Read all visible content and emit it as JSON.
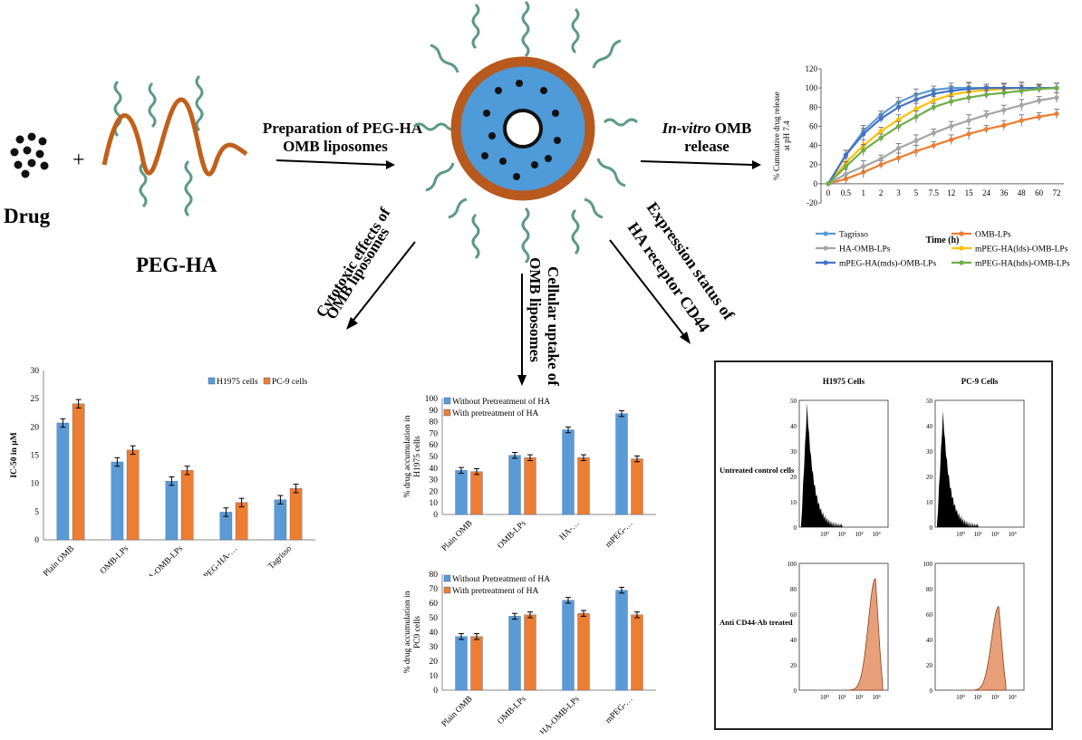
{
  "labels": {
    "drug": "Drug",
    "plus": "+",
    "peg_ha": "PEG-HA",
    "prep_line1": "Preparation of PEG-HA",
    "prep_line2": "OMB liposomes",
    "invitro_italic": "In-vitro",
    "invitro_rest": " OMB",
    "invitro_line2": "release",
    "cyto_line1": "Cytotoxic effects of",
    "cyto_line2": "OMB liposomes",
    "uptake_line1": "Cellular uptake of",
    "uptake_line2": "OMB liposomes",
    "expr_line1": "Expression status of",
    "expr_line2": "HA receptor CD44"
  },
  "colors": {
    "blue": "#5b9bd5",
    "orange": "#ed7d31",
    "gray": "#a5a5a5",
    "yellow": "#ffc000",
    "darkblue": "#4472c4",
    "green": "#70ad47",
    "liposome_core": "#4f9ad8",
    "liposome_shell": "#b8591e",
    "peg_green": "#5d9a86",
    "ha_brown": "#c0601a",
    "flow_fill": "#e8a07a"
  },
  "chart_data": [
    {
      "id": "release",
      "type": "line",
      "ylabel_line1": "% Cumulative drug release",
      "ylabel_line2": "at pH 7.4",
      "xlabel": "Time (h)",
      "categories": [
        "0",
        "0.5",
        "1",
        "2",
        "3",
        "5",
        "7.5",
        "12",
        "15",
        "24",
        "36",
        "48",
        "60",
        "72"
      ],
      "ylim": [
        -20,
        120
      ],
      "yticks": [
        -20,
        0,
        20,
        40,
        60,
        80,
        100,
        120
      ],
      "series": [
        {
          "name": "Tagrisso",
          "color": "#5b9bd5",
          "values": [
            0,
            30,
            55,
            72,
            85,
            93,
            98,
            100,
            100,
            100,
            100,
            100,
            100,
            100
          ]
        },
        {
          "name": "OMB-LPs",
          "color": "#ed7d31",
          "values": [
            0,
            5,
            12,
            20,
            27,
            34,
            40,
            46,
            52,
            57,
            61,
            66,
            70,
            73
          ]
        },
        {
          "name": "HA-OMB-LPs",
          "color": "#a5a5a5",
          "values": [
            0,
            10,
            18,
            26,
            37,
            45,
            53,
            60,
            66,
            72,
            77,
            82,
            87,
            90
          ]
        },
        {
          "name": "mPEG-HA(lds)-OMB-LPs",
          "color": "#ffc000",
          "values": [
            0,
            22,
            40,
            55,
            67,
            78,
            87,
            93,
            96,
            98,
            99,
            100,
            100,
            100
          ]
        },
        {
          "name": "mPEG-HA(mds)-OMB-LPs",
          "color": "#4472c4",
          "values": [
            0,
            30,
            52,
            68,
            80,
            88,
            94,
            97,
            99,
            100,
            100,
            100,
            100,
            100
          ]
        },
        {
          "name": "mPEG-HA(hds)-OMB-LPs",
          "color": "#70ad47",
          "values": [
            0,
            18,
            35,
            48,
            60,
            70,
            80,
            86,
            90,
            93,
            95,
            97,
            99,
            100
          ]
        }
      ]
    },
    {
      "id": "ic50",
      "type": "bar",
      "ylabel": "IC-50 in µM",
      "categories": [
        "Plain OMB",
        "OMB-LPs",
        "HA-OMB-LPs",
        "mPEG-HA-…",
        "Tagrisso"
      ],
      "ylim": [
        0,
        30
      ],
      "yticks": [
        0,
        5,
        10,
        15,
        20,
        25,
        30
      ],
      "series": [
        {
          "name": "H1975 cells",
          "color": "#5b9bd5",
          "values": [
            20.7,
            13.8,
            10.4,
            4.9,
            7.1
          ]
        },
        {
          "name": "PC-9 cells",
          "color": "#ed7d31",
          "values": [
            24.1,
            15.9,
            12.3,
            6.6,
            9.1
          ]
        }
      ]
    },
    {
      "id": "uptake_h1975",
      "type": "bar",
      "ylabel_line1": "% drug accumulation in",
      "ylabel_line2": "H1975 cells",
      "categories": [
        "Plain OMB",
        "OMB-LPs",
        "HA-…",
        "mPEG-…"
      ],
      "ylim": [
        0,
        100
      ],
      "yticks": [
        0,
        10,
        20,
        30,
        40,
        50,
        60,
        70,
        80,
        90,
        100
      ],
      "series": [
        {
          "name": "Without Pretreatment of HA",
          "color": "#5b9bd5",
          "values": [
            38,
            51,
            73,
            87
          ]
        },
        {
          "name": "With pretreatment of HA",
          "color": "#ed7d31",
          "values": [
            37,
            49,
            49,
            48
          ]
        }
      ]
    },
    {
      "id": "uptake_pc9",
      "type": "bar",
      "ylabel_line1": "% drug accumulation in",
      "ylabel_line2": "PC9 cells",
      "categories": [
        "Plain OMB",
        "OMB-LPs",
        "HA-OMB-LPs",
        "mPEG-…"
      ],
      "ylim": [
        0,
        80
      ],
      "yticks": [
        0,
        10,
        20,
        30,
        40,
        50,
        60,
        70,
        80
      ],
      "series": [
        {
          "name": "Without Pretreatment of HA",
          "color": "#5b9bd5",
          "values": [
            37,
            51,
            62,
            69
          ]
        },
        {
          "name": "With pretreatment of HA",
          "color": "#ed7d31",
          "values": [
            37,
            52,
            53,
            52
          ]
        }
      ]
    },
    {
      "id": "flow",
      "type": "histogram",
      "columns": [
        "H1975 Cells",
        "PC-9 Cells"
      ],
      "rows": [
        "Untreated control cells",
        "Anti CD44-Ab treated"
      ],
      "row_yticks": [
        [
          0,
          10,
          20,
          30,
          40,
          50
        ],
        [
          0,
          20,
          40,
          60,
          80,
          100
        ]
      ],
      "xticks": [
        "10⁰",
        "10¹",
        "10²",
        "10³"
      ]
    }
  ]
}
